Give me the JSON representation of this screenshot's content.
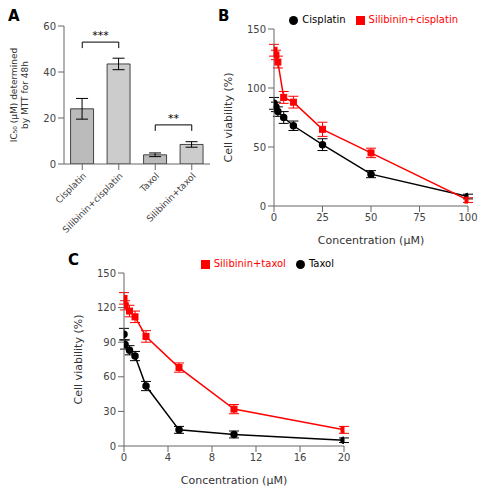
{
  "chart_data": [
    {
      "type": "bar",
      "title": "A",
      "categories": [
        "Cisplatin",
        "Silibinin+cisplatin",
        "Taxol",
        "Silibinin+taxol"
      ],
      "values": [
        24.0,
        43.5,
        4.0,
        8.5
      ],
      "errors": [
        4.5,
        2.5,
        0.8,
        1.2
      ],
      "colors": [
        "#bbbbbb",
        "#cccccc",
        "#bbbbbb",
        "#cccccc"
      ],
      "ylabel": "IC₅₀ (μM) determined\nby MTT for 48h",
      "ylim": [
        0,
        60
      ],
      "yticks": [
        0,
        20,
        40,
        60
      ],
      "grid": false,
      "annotations": [
        {
          "from": "Cisplatin",
          "to": "Silibinin+cisplatin",
          "y": 53,
          "label": "***"
        },
        {
          "from": "Taxol",
          "to": "Silibinin+taxol",
          "y": 17,
          "label": "**"
        }
      ]
    },
    {
      "type": "line",
      "title": "B",
      "xlabel": "Concentration (μM)",
      "ylabel": "Cell viability (%)",
      "x": [
        0,
        1,
        2,
        5,
        10,
        25,
        50,
        100
      ],
      "xlim": [
        0,
        100
      ],
      "xticks": [
        0,
        25,
        50,
        75,
        100
      ],
      "ylim": [
        0,
        150
      ],
      "yticks": [
        0,
        50,
        100,
        150
      ],
      "legend": "upper right",
      "grid": false,
      "series": [
        {
          "name": "Cisplatin",
          "color": "black",
          "marker": "circle",
          "values": [
            87,
            84,
            80,
            75,
            68,
            52,
            27,
            8
          ],
          "errors": [
            5,
            4,
            4,
            5,
            4,
            5,
            3,
            2
          ]
        },
        {
          "name": "Silibinin+cisplatin",
          "color": "red",
          "marker": "square",
          "values": [
            132,
            128,
            122,
            92,
            88,
            65,
            45,
            5
          ],
          "errors": [
            5,
            4,
            5,
            5,
            5,
            6,
            4,
            2
          ]
        }
      ]
    },
    {
      "type": "line",
      "title": "C",
      "xlabel": "Concentration (μM)",
      "ylabel": "Cell viability (%)",
      "x": [
        0,
        0.1,
        0.5,
        1,
        2,
        5,
        10,
        20
      ],
      "xlim": [
        0,
        20
      ],
      "xticks": [
        0,
        4,
        8,
        12,
        16,
        20
      ],
      "ylim": [
        0,
        150
      ],
      "yticks": [
        0,
        30,
        60,
        90,
        120,
        150
      ],
      "legend": "upper right",
      "grid": false,
      "series": [
        {
          "name": "Taxol",
          "color": "black",
          "marker": "circle",
          "values": [
            97,
            88,
            83,
            78,
            52,
            14,
            10,
            5
          ],
          "errors": [
            5,
            4,
            4,
            4,
            4,
            3,
            3,
            2
          ]
        },
        {
          "name": "Silibinin+taxol",
          "color": "red",
          "marker": "square",
          "values": [
            128,
            122,
            117,
            112,
            95,
            68,
            32,
            14
          ],
          "errors": [
            5,
            4,
            5,
            5,
            5,
            4,
            4,
            3
          ]
        }
      ]
    }
  ]
}
